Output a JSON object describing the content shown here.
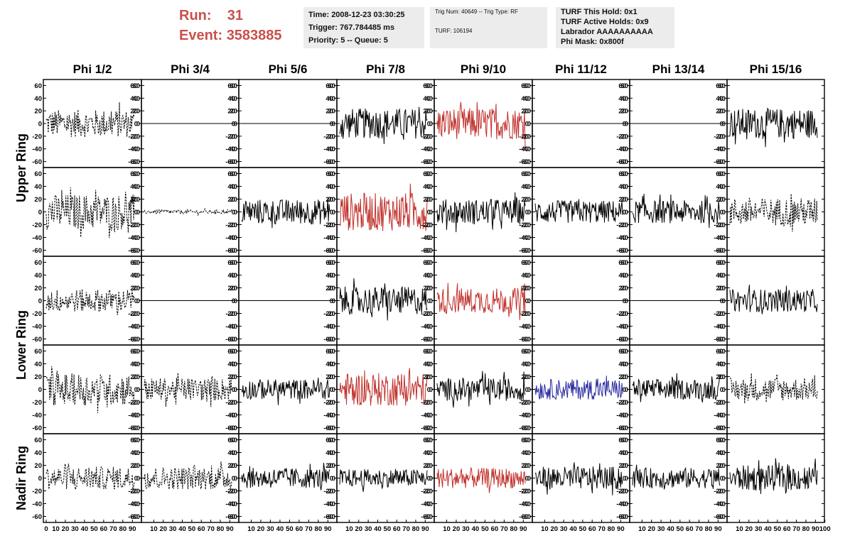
{
  "header": {
    "run_label": "Run:",
    "run_value": "31",
    "event_label": "Event:",
    "event_value": "3583885"
  },
  "info_time": {
    "line1": "Time: 2008-12-23 03:30:25",
    "line2": "Trigger: 767.784485 ms",
    "line3": "Priority: 5 -- Queue: 5"
  },
  "info_trig": {
    "line1": "Trig Num: 40649 -- Trig Type: RF",
    "line2": "TURF: 106194"
  },
  "info_turf": {
    "line1": "TURF This Hold: 0x1",
    "line2": "TURF Active Holds: 0x9",
    "line3": "Labrador AAAAAAAAAA",
    "line4": "Phi Mask: 0x800f"
  },
  "colors": {
    "header_red": "#c9504c",
    "trace_black": "#000000",
    "trace_red": "#c0302b",
    "trace_blue": "#2a2aa0",
    "panel_bg": "#ececec"
  },
  "chart_data": {
    "type": "line",
    "columns": [
      "Phi 1/2",
      "Phi 3/4",
      "Phi 5/6",
      "Phi 7/8",
      "Phi 9/10",
      "Phi 11/12",
      "Phi 13/14",
      "Phi 15/16"
    ],
    "row_groups": [
      {
        "label": "Upper Ring",
        "rows": [
          0,
          1
        ]
      },
      {
        "label": "Lower Ring",
        "rows": [
          2,
          3
        ]
      },
      {
        "label": "Nadir Ring",
        "rows": [
          4
        ]
      }
    ],
    "xlim": [
      0,
      100
    ],
    "ylim": [
      -65,
      65
    ],
    "x_ticks": [
      "0",
      "10",
      "20",
      "30",
      "40",
      "50",
      "60",
      "70",
      "80",
      "90",
      "100"
    ],
    "y_ticks": [
      "60",
      "40",
      "20",
      "0",
      "-20",
      "-40",
      "-60"
    ],
    "traces": [
      [
        {
          "style": "dashed",
          "color": "black",
          "amp": 22
        },
        {
          "style": "flat",
          "color": "black",
          "amp": 0
        },
        {
          "style": "flat",
          "color": "black",
          "amp": 0
        },
        {
          "style": "solid",
          "color": "black",
          "amp": 24
        },
        {
          "style": "solid",
          "color": "red",
          "amp": 25
        },
        {
          "style": "flat",
          "color": "black",
          "amp": 0
        },
        {
          "style": "flat",
          "color": "black",
          "amp": 0
        },
        {
          "style": "solid",
          "color": "black",
          "amp": 24
        }
      ],
      [
        {
          "style": "dashed",
          "color": "black",
          "amp": 28
        },
        {
          "style": "dashed",
          "color": "black",
          "amp": 3
        },
        {
          "style": "solid",
          "color": "black",
          "amp": 20
        },
        {
          "style": "solid",
          "color": "red",
          "amp": 30
        },
        {
          "style": "solid",
          "color": "black",
          "amp": 20
        },
        {
          "style": "solid",
          "color": "black",
          "amp": 18
        },
        {
          "style": "solid",
          "color": "black",
          "amp": 18
        },
        {
          "style": "dashed",
          "color": "black",
          "amp": 22
        }
      ],
      [
        {
          "style": "dashed",
          "color": "black",
          "amp": 18
        },
        {
          "style": "flat",
          "color": "black",
          "amp": 0
        },
        {
          "style": "flat",
          "color": "black",
          "amp": 0
        },
        {
          "style": "solid",
          "color": "black",
          "amp": 22
        },
        {
          "style": "solid",
          "color": "red",
          "amp": 20
        },
        {
          "style": "flat",
          "color": "black",
          "amp": 0
        },
        {
          "style": "flat",
          "color": "black",
          "amp": 0
        },
        {
          "style": "solid",
          "color": "black",
          "amp": 18
        }
      ],
      [
        {
          "style": "dashed",
          "color": "black",
          "amp": 25
        },
        {
          "style": "dashed",
          "color": "black",
          "amp": 18
        },
        {
          "style": "solid",
          "color": "black",
          "amp": 16
        },
        {
          "style": "solid",
          "color": "red",
          "amp": 26
        },
        {
          "style": "solid",
          "color": "black",
          "amp": 18
        },
        {
          "style": "solid",
          "color": "blue",
          "amp": 16
        },
        {
          "style": "solid",
          "color": "black",
          "amp": 16
        },
        {
          "style": "dashed",
          "color": "black",
          "amp": 18
        }
      ],
      [
        {
          "style": "dashed",
          "color": "black",
          "amp": 18
        },
        {
          "style": "dashed",
          "color": "black",
          "amp": 18
        },
        {
          "style": "solid",
          "color": "black",
          "amp": 16
        },
        {
          "style": "solid",
          "color": "black",
          "amp": 14
        },
        {
          "style": "solid",
          "color": "red",
          "amp": 16
        },
        {
          "style": "solid",
          "color": "black",
          "amp": 18
        },
        {
          "style": "solid",
          "color": "black",
          "amp": 16
        },
        {
          "style": "solid",
          "color": "black",
          "amp": 20
        }
      ]
    ]
  }
}
